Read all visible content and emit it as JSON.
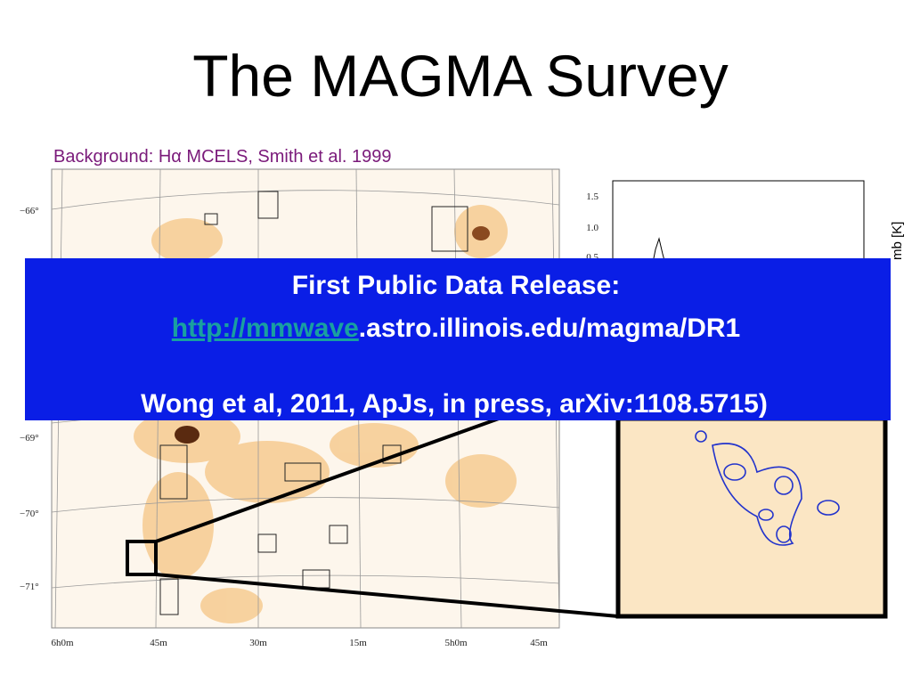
{
  "title": "The MAGMA Survey",
  "subtitle": "Background: Hα MCELS, Smith et al. 1999",
  "map": {
    "dec_labels": [
      "−66°",
      "−69°",
      "−70°",
      "−71°"
    ],
    "ra_labels": [
      "6h0m",
      "45m",
      "30m",
      "15m",
      "5h0m",
      "45m"
    ]
  },
  "spectrum": {
    "y_labels": [
      "1.5",
      "1.0",
      "0.5"
    ],
    "axis_label": "mb [K]"
  },
  "banner": {
    "heading": "First Public Data Release:",
    "link": "http://mmwave",
    "link_rest": ".astro.illinois.edu/magma/DR1",
    "citation": "Wong et al, 2011, ApJs, in press, arXiv:1108.5715)"
  }
}
